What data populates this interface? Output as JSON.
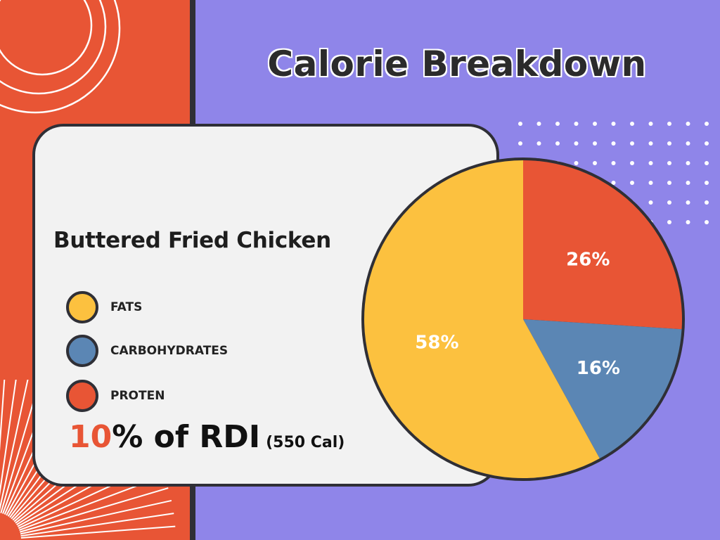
{
  "title": "Calorie Breakdown",
  "food_name": "Buttered Fried Chicken",
  "legend": [
    {
      "label": "FATS",
      "color": "#fcc13f"
    },
    {
      "label": "CARBOHYDRATES",
      "color": "#5b86b4"
    },
    {
      "label": "PROTEN",
      "color": "#e85535"
    }
  ],
  "rdi": {
    "percent": "10",
    "text": "% of RDI",
    "calories": "(550 Cal)"
  },
  "colors": {
    "background": "#8f85e9",
    "accent": "#e85535",
    "card": "#f2f2f2",
    "outline": "#2f2f36"
  },
  "chart_data": {
    "type": "pie",
    "title": "",
    "slices": [
      {
        "label": "26%",
        "value": 26,
        "color": "#e85535"
      },
      {
        "label": "16%",
        "value": 16,
        "color": "#5b86b4"
      },
      {
        "label": "58%",
        "value": 58,
        "color": "#fcc13f"
      }
    ],
    "start": "12 o'clock",
    "direction": "clockwise"
  }
}
